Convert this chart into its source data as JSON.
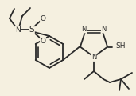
{
  "bg_color": "#f5f0e0",
  "line_color": "#2a2a2a",
  "lw": 1.3,
  "figsize": [
    1.71,
    1.2
  ],
  "dpi": 100,
  "xlim": [
    0,
    171
  ],
  "ylim": [
    0,
    120
  ]
}
